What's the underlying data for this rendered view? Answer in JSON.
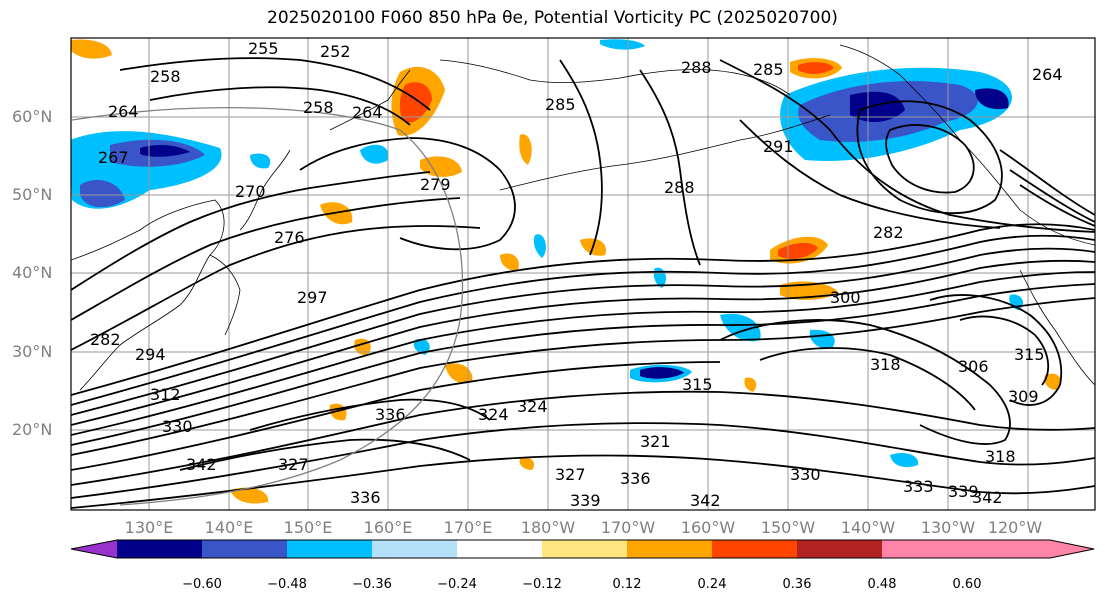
{
  "title": "2025020100 F060 850 hPa θe, Potential Vorticity PC (2025020700)",
  "lat_labels": [
    "60°N",
    "50°N",
    "40°N",
    "30°N",
    "20°N"
  ],
  "lon_labels": [
    "130°E",
    "140°E",
    "150°E",
    "160°E",
    "170°E",
    "180°W",
    "170°W",
    "160°W",
    "150°W",
    "140°W",
    "130°W",
    "120°W"
  ],
  "colorbar": {
    "ticks": [
      "−0.60",
      "−0.48",
      "−0.36",
      "−0.24",
      "−0.12",
      "0.12",
      "0.24",
      "0.36",
      "0.48",
      "0.60"
    ],
    "colors": [
      "#9932cc",
      "#00008b",
      "#3a55c8",
      "#00bfff",
      "#b4e0f8",
      "#ffffff",
      "#ffe680",
      "#ffa500",
      "#ff4500",
      "#b22222",
      "#ff85a8"
    ]
  },
  "contour_labels": [
    "252",
    "255",
    "258",
    "258",
    "264",
    "264",
    "267",
    "264",
    "270",
    "276",
    "279",
    "282",
    "282",
    "285",
    "285",
    "288",
    "288",
    "291",
    "294",
    "297",
    "300",
    "306",
    "309",
    "312",
    "315",
    "315",
    "318",
    "318",
    "321",
    "324",
    "324",
    "327",
    "327",
    "330",
    "330",
    "333",
    "336",
    "336",
    "336",
    "339",
    "339",
    "342",
    "342",
    "342"
  ]
}
